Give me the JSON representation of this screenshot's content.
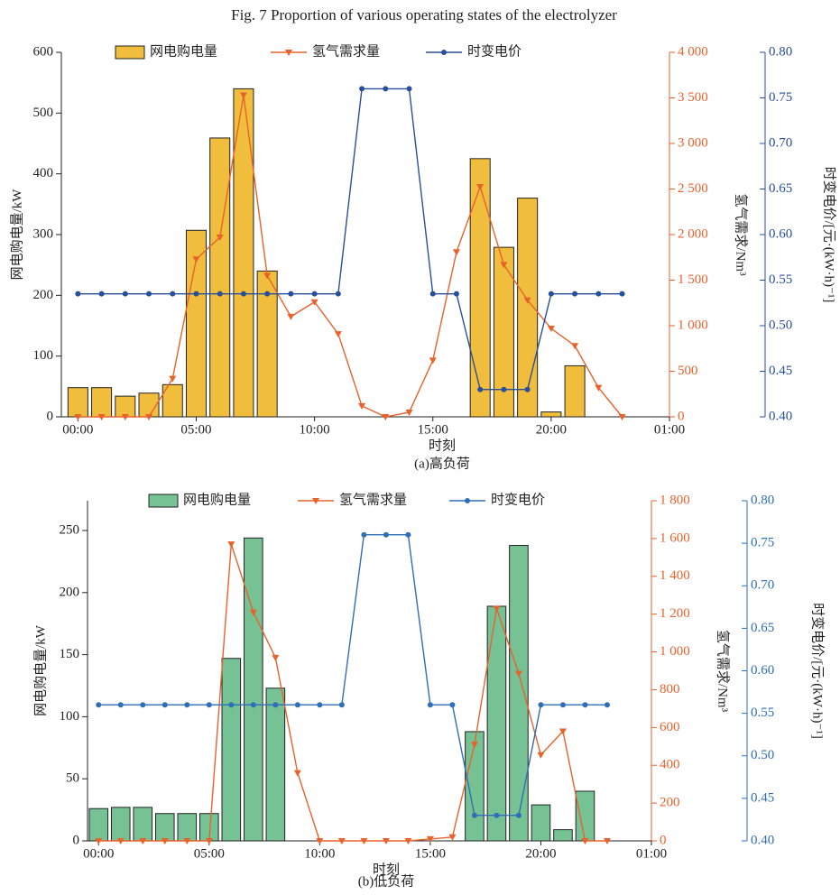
{
  "title": "Fig. 7    Proportion of various operating states of the electrolyzer",
  "chart_data": [
    {
      "type": "bar",
      "caption": "(a)高负荷",
      "xlabel": "时刻",
      "ylabel": "网电购电量/kW",
      "y2label": "氢气需求/Nm³",
      "y3label": "时变电价/[元·(kW·h)⁻¹]",
      "x": [
        0,
        1,
        2,
        3,
        4,
        5,
        6,
        7,
        8,
        9,
        10,
        11,
        12,
        13,
        14,
        15,
        16,
        17,
        18,
        19,
        20,
        21,
        22,
        23
      ],
      "xlim": [
        -0.7,
        25
      ],
      "xticks": [
        {
          "value": 0,
          "label": "00:00"
        },
        {
          "value": 5,
          "label": "05:00"
        },
        {
          "value": 10,
          "label": "10:00"
        },
        {
          "value": 15,
          "label": "15:00"
        },
        {
          "value": 20,
          "label": "20:00"
        },
        {
          "value": 25,
          "label": "01:00"
        }
      ],
      "ylim": [
        0,
        600
      ],
      "yticks": [
        0,
        100,
        200,
        300,
        400,
        500,
        600
      ],
      "y2lim": [
        0,
        4000
      ],
      "y2ticks": [
        0,
        500,
        {
          "value": 1000,
          "label": "1 000"
        },
        {
          "value": 1500,
          "label": "1 500"
        },
        {
          "value": 2000,
          "label": "2 000"
        },
        {
          "value": 2500,
          "label": "2 500"
        },
        {
          "value": 3000,
          "label": "3 000"
        },
        {
          "value": 3500,
          "label": "3 500"
        },
        {
          "value": 4000,
          "label": "4 000"
        }
      ],
      "y3lim": [
        0.4,
        0.8
      ],
      "y3ticks": [
        {
          "value": 0.4,
          "label": "0.40"
        },
        {
          "value": 0.45,
          "label": "0.45"
        },
        {
          "value": 0.5,
          "label": "0.50"
        },
        {
          "value": 0.55,
          "label": "0.55"
        },
        {
          "value": 0.6,
          "label": "0.60"
        },
        {
          "value": 0.65,
          "label": "0.65"
        },
        {
          "value": 0.7,
          "label": "0.70"
        },
        {
          "value": 0.75,
          "label": "0.75"
        },
        {
          "value": 0.8,
          "label": "0.80"
        }
      ],
      "series": [
        {
          "name": "网电购电量",
          "type": "bar",
          "axis": "y",
          "color": "#f0be3c",
          "values": [
            48,
            48,
            34,
            39,
            53,
            307,
            459,
            540,
            240,
            0,
            0,
            0,
            0,
            0,
            0,
            0,
            0,
            425,
            279,
            360,
            8,
            84,
            0,
            0
          ]
        },
        {
          "name": "氢气需求量",
          "type": "line",
          "axis": "y2",
          "color": "#e8622c",
          "marker": "triangle",
          "values": [
            0,
            0,
            0,
            0,
            420,
            1730,
            1970,
            3530,
            1550,
            1100,
            1260,
            910,
            120,
            0,
            50,
            620,
            1810,
            2525,
            1670,
            1280,
            970,
            780,
            320,
            0
          ]
        },
        {
          "name": "时变电价",
          "type": "line",
          "axis": "y3",
          "color": "#2a4f9a",
          "marker": "circle",
          "values": [
            0.535,
            0.535,
            0.535,
            0.535,
            0.535,
            0.535,
            0.535,
            0.535,
            0.535,
            0.535,
            0.535,
            0.535,
            0.76,
            0.76,
            0.76,
            0.535,
            0.535,
            0.43,
            0.43,
            0.43,
            0.535,
            0.535,
            0.535,
            0.535
          ]
        }
      ]
    },
    {
      "type": "bar",
      "caption": "(b)低负荷",
      "xlabel": "时刻",
      "ylabel": "网电购电量/kW",
      "y2label": "氢气需求/Nm³",
      "y3label": "时变电价/[元·(kW·h)⁻¹]",
      "x": [
        0,
        1,
        2,
        3,
        4,
        5,
        6,
        7,
        8,
        9,
        10,
        11,
        12,
        13,
        14,
        15,
        16,
        17,
        18,
        19,
        20,
        21,
        22,
        23
      ],
      "xlim": [
        -0.5,
        25
      ],
      "xticks": [
        {
          "value": 0,
          "label": "00:00"
        },
        {
          "value": 5,
          "label": "05:00"
        },
        {
          "value": 10,
          "label": "10:00"
        },
        {
          "value": 15,
          "label": "15:00"
        },
        {
          "value": 20,
          "label": "20:00"
        },
        {
          "value": 25,
          "label": "01:00"
        }
      ],
      "ylim": [
        0,
        274
      ],
      "yticks": [
        0,
        50,
        100,
        150,
        200,
        250
      ],
      "y2lim": [
        0,
        1800
      ],
      "y2ticks": [
        0,
        200,
        400,
        600,
        800,
        {
          "value": 1000,
          "label": "1 000"
        },
        {
          "value": 1200,
          "label": "1 200"
        },
        {
          "value": 1400,
          "label": "1 400"
        },
        {
          "value": 1600,
          "label": "1 600"
        },
        {
          "value": 1800,
          "label": "1 800"
        }
      ],
      "y3lim": [
        0.4,
        0.8
      ],
      "y3ticks": [
        {
          "value": 0.4,
          "label": "0.40"
        },
        {
          "value": 0.45,
          "label": "0.45"
        },
        {
          "value": 0.5,
          "label": "0.50"
        },
        {
          "value": 0.55,
          "label": "0.55"
        },
        {
          "value": 0.6,
          "label": "0.60"
        },
        {
          "value": 0.65,
          "label": "0.65"
        },
        {
          "value": 0.7,
          "label": "0.70"
        },
        {
          "value": 0.75,
          "label": "0.75"
        },
        {
          "value": 0.8,
          "label": "0.80"
        }
      ],
      "series": [
        {
          "name": "网电购电量",
          "type": "bar",
          "axis": "y",
          "color": "#76c295",
          "values": [
            26,
            27,
            27,
            22,
            22,
            22,
            147,
            244,
            123,
            0,
            0,
            0,
            0,
            0,
            0,
            0,
            0,
            88,
            189,
            238,
            29,
            9,
            40,
            0
          ]
        },
        {
          "name": "氢气需求量",
          "type": "line",
          "axis": "y2",
          "color": "#e8622c",
          "marker": "triangle",
          "values": [
            0,
            0,
            0,
            0,
            0,
            0,
            1570,
            1210,
            970,
            360,
            0,
            0,
            0,
            0,
            0,
            10,
            20,
            510,
            1230,
            885,
            455,
            580,
            0,
            0
          ]
        },
        {
          "name": "时变电价",
          "type": "line",
          "axis": "y3",
          "color": "#2e6fb7",
          "marker": "circle",
          "values": [
            0.56,
            0.56,
            0.56,
            0.56,
            0.56,
            0.56,
            0.56,
            0.56,
            0.56,
            0.56,
            0.56,
            0.56,
            0.76,
            0.76,
            0.76,
            0.56,
            0.56,
            0.43,
            0.43,
            0.43,
            0.56,
            0.56,
            0.56,
            0.56
          ]
        }
      ]
    }
  ]
}
